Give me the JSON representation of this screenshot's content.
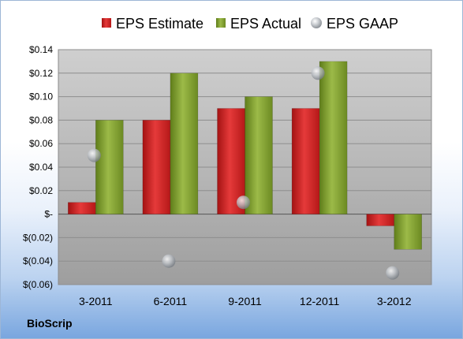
{
  "company": "BioScrip",
  "colors": {
    "estimate": "#cc1f1f",
    "actual": "#7a9a2a",
    "gaap": "#9aa0a6",
    "plot_bg": "#bdbdbd"
  },
  "chart_data": {
    "type": "bar",
    "categories": [
      "3-2011",
      "6-2011",
      "9-2011",
      "12-2011",
      "3-2012"
    ],
    "series": [
      {
        "name": "EPS Estimate",
        "kind": "bar",
        "values": [
          0.01,
          0.08,
          0.09,
          0.09,
          -0.01
        ]
      },
      {
        "name": "EPS Actual",
        "kind": "bar",
        "values": [
          0.08,
          0.12,
          0.1,
          0.13,
          -0.03
        ]
      },
      {
        "name": "EPS GAAP",
        "kind": "marker",
        "values": [
          0.05,
          -0.04,
          0.01,
          0.12,
          -0.05
        ]
      }
    ],
    "ylim": [
      -0.06,
      0.14
    ],
    "yticks": [
      0.14,
      0.12,
      0.1,
      0.08,
      0.06,
      0.04,
      0.02,
      0,
      -0.02,
      -0.04,
      -0.06
    ],
    "ytick_labels": [
      "$0.14",
      "$0.12",
      "$0.10",
      "$0.08",
      "$0.06",
      "$0.04",
      "$0.02",
      "$-",
      "$(0.02)",
      "$(0.04)",
      "$(0.06)"
    ],
    "legend_position": "top",
    "grid": true
  }
}
